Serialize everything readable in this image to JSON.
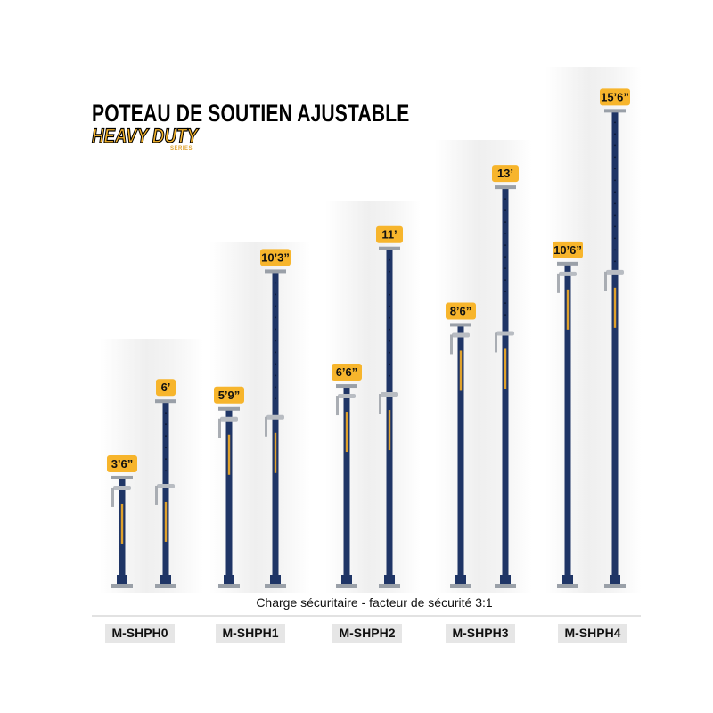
{
  "title": "POTEAU DE SOUTIEN AJUSTABLE",
  "series_name": "HEAVY DUTY",
  "series_sub": "SERIES",
  "caption": "Charge sécuritaire - facteur de sécurité 3:1",
  "colors": {
    "pole": "#1f3566",
    "label_bg": "#f7b52c",
    "badge_bg": "#e6e6e6",
    "plate": "#9aa0a8"
  },
  "models": [
    {
      "name": "M-SHPH0",
      "closed_label": "3’6”",
      "extended_label": "6’",
      "closed_ft": 3.5,
      "extended_ft": 6
    },
    {
      "name": "M-SHPH1",
      "closed_label": "5’9”",
      "extended_label": "10’3”",
      "closed_ft": 5.75,
      "extended_ft": 10.25
    },
    {
      "name": "M-SHPH2",
      "closed_label": "6’6”",
      "extended_label": "11’",
      "closed_ft": 6.5,
      "extended_ft": 11
    },
    {
      "name": "M-SHPH3",
      "closed_label": "8’6”",
      "extended_label": "13’",
      "closed_ft": 8.5,
      "extended_ft": 13
    },
    {
      "name": "M-SHPH4",
      "closed_label": "10’6”",
      "extended_label": "15’6”",
      "closed_ft": 10.5,
      "extended_ft": 15.5
    }
  ]
}
